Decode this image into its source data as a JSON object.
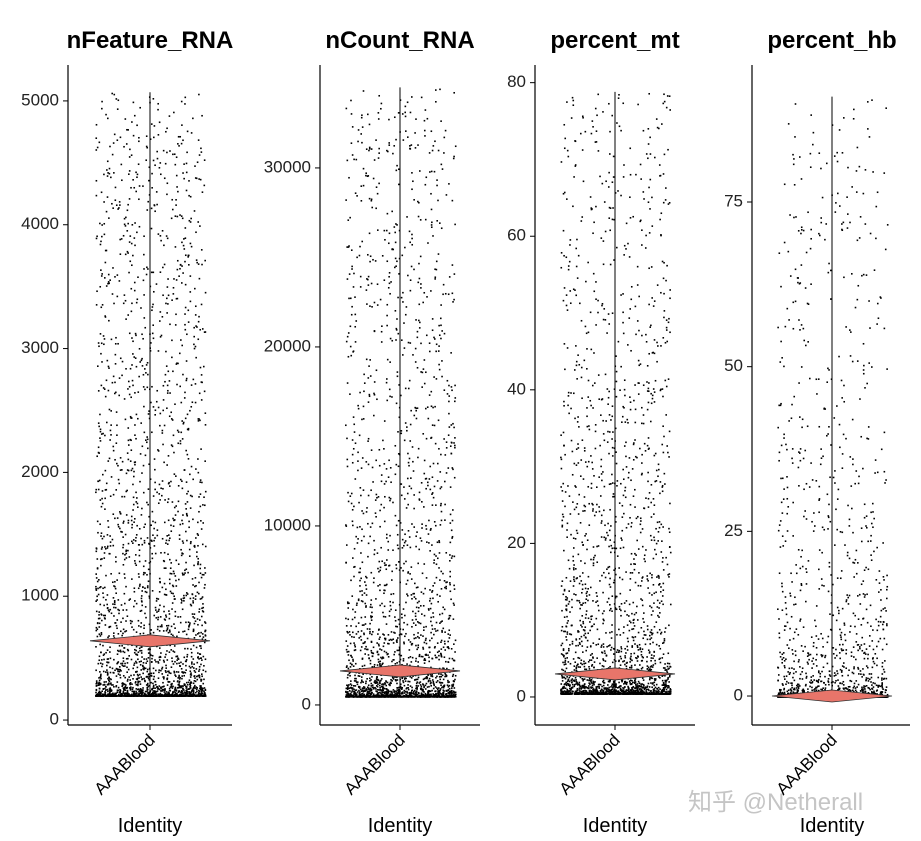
{
  "chart_data": [
    {
      "type": "violin",
      "title": "nFeature_RNA",
      "categories": [
        "AAABlood"
      ],
      "x_label": "Identity",
      "ylim": [
        -40,
        5290
      ],
      "yticks": [
        0,
        1000,
        2000,
        3000,
        4000,
        5000
      ],
      "min": 200,
      "mode": 640,
      "max": 5070,
      "color": "#e8756a"
    },
    {
      "type": "violin",
      "title": "nCount_RNA",
      "categories": [
        "AAABlood"
      ],
      "x_label": "Identity",
      "ylim": [
        -1120,
        35750
      ],
      "yticks": [
        0,
        10000,
        20000,
        30000
      ],
      "min": 500,
      "mode": 1900,
      "max": 34500,
      "color": "#e8756a"
    },
    {
      "type": "violin",
      "title": "percent_mt",
      "categories": [
        "AAABlood"
      ],
      "x_label": "Identity",
      "ylim": [
        -3.65,
        82.3
      ],
      "yticks": [
        0,
        20,
        40,
        60,
        80
      ],
      "min": 0.5,
      "mode": 3,
      "max": 78.8,
      "color": "#e8756a"
    },
    {
      "type": "violin",
      "title": "percent_hb",
      "categories": [
        "AAABlood"
      ],
      "x_label": "Identity",
      "ylim": [
        -4.4,
        95.8
      ],
      "yticks": [
        0,
        25,
        50,
        75
      ],
      "min": 0,
      "mode": 0,
      "max": 91,
      "color": "#e8756a"
    }
  ],
  "watermark": "知乎 @Netherall"
}
